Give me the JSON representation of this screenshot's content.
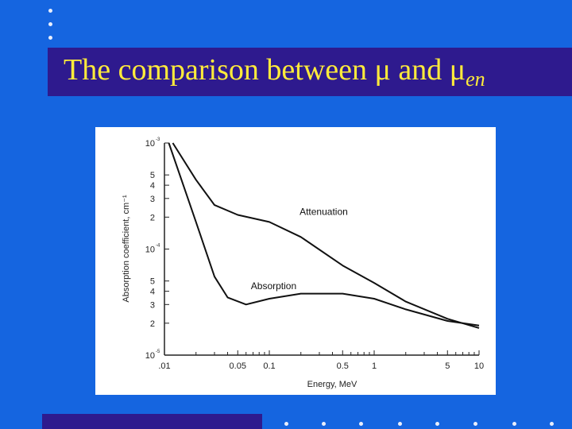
{
  "slide": {
    "title_main": "The comparison between μ and μ",
    "title_sub": "en"
  },
  "colors": {
    "background": "#1565e0",
    "title_band": "#2e1a8e",
    "title_text": "#ffeb3b",
    "dots": "#e8eefc"
  },
  "chart_data": {
    "type": "line",
    "scale": {
      "x": "log",
      "y": "log"
    },
    "ylabel": "Absorption coefficient, cm⁻¹",
    "xlabel": "Energy, MeV",
    "x_ticks": [
      ".01",
      "0.05",
      "0.1",
      "0.5",
      "1",
      "5",
      "10"
    ],
    "y_ticks": [
      {
        "label": "10",
        "exp": "-3"
      },
      {
        "label": "5"
      },
      {
        "label": "4"
      },
      {
        "label": "3"
      },
      {
        "label": "2"
      },
      {
        "label": "10",
        "exp": "-4"
      },
      {
        "label": "5"
      },
      {
        "label": "4"
      },
      {
        "label": "3"
      },
      {
        "label": "2"
      },
      {
        "label": "10",
        "exp": "-5"
      }
    ],
    "series": [
      {
        "name": "Attenuation",
        "points": [
          [
            0.012,
            0.001
          ],
          [
            0.02,
            0.00045
          ],
          [
            0.03,
            0.00026
          ],
          [
            0.05,
            0.00021
          ],
          [
            0.1,
            0.00018
          ],
          [
            0.2,
            0.00013
          ],
          [
            0.5,
            7e-05
          ],
          [
            1,
            4.8e-05
          ],
          [
            2,
            3.2e-05
          ],
          [
            5,
            2.2e-05
          ],
          [
            10,
            1.8e-05
          ]
        ]
      },
      {
        "name": "Absorption",
        "points": [
          [
            0.011,
            0.001
          ],
          [
            0.02,
            0.00018
          ],
          [
            0.03,
            5.5e-05
          ],
          [
            0.04,
            3.5e-05
          ],
          [
            0.06,
            3e-05
          ],
          [
            0.1,
            3.4e-05
          ],
          [
            0.2,
            3.8e-05
          ],
          [
            0.5,
            3.8e-05
          ],
          [
            1,
            3.4e-05
          ],
          [
            2,
            2.7e-05
          ],
          [
            5,
            2.1e-05
          ],
          [
            10,
            1.9e-05
          ]
        ]
      }
    ]
  }
}
